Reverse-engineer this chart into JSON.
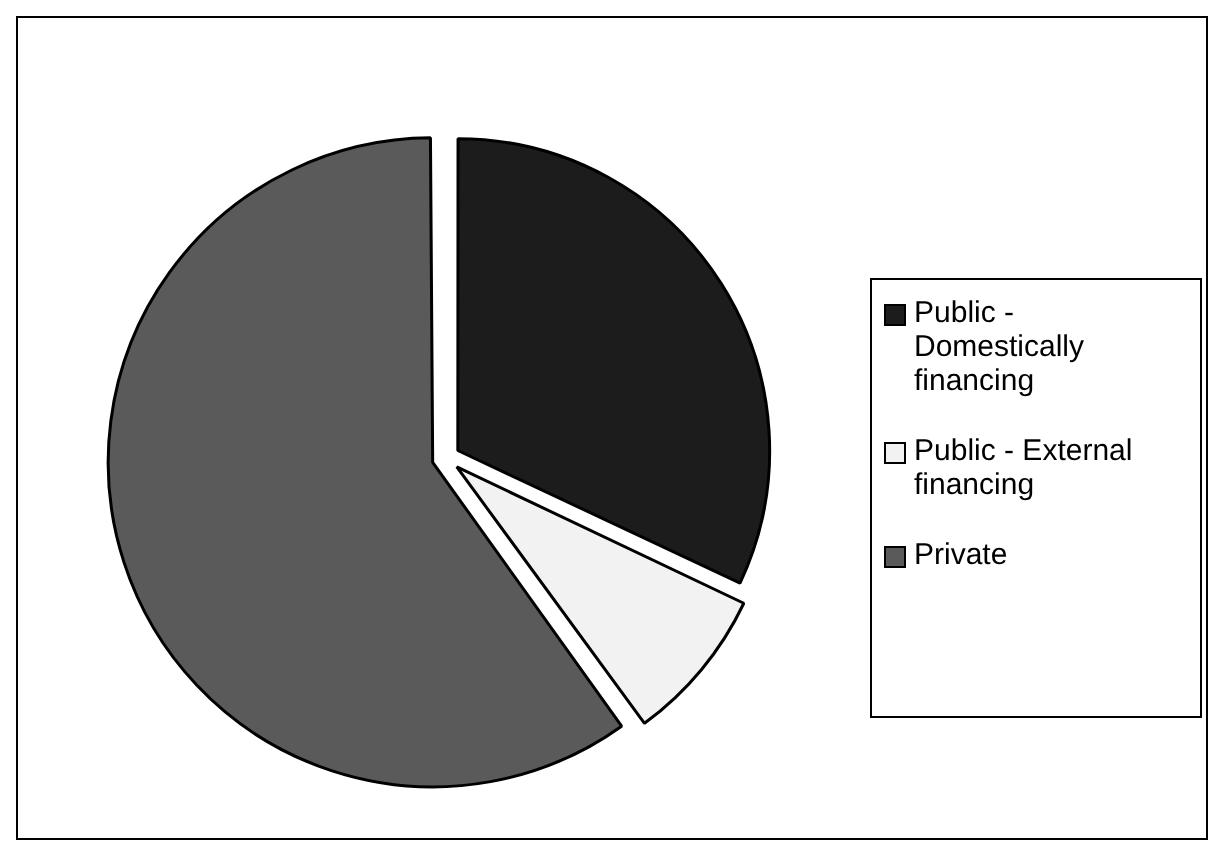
{
  "chart_data": {
    "type": "pie",
    "categories": [
      "Public - Domestically financing",
      "Public - External financing",
      "Private"
    ],
    "values": [
      32,
      8,
      60
    ],
    "colors": [
      "#1c1c1c",
      "#f2f2f2",
      "#5a5a5a"
    ],
    "legend": "right"
  }
}
